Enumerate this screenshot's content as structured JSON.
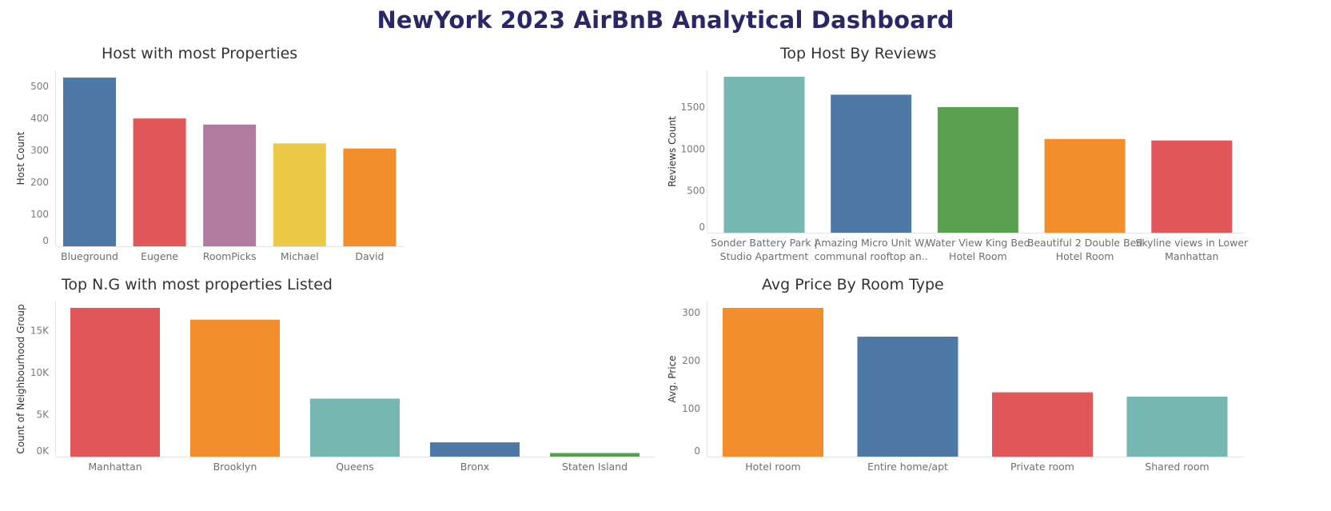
{
  "dashboard": {
    "title": "NewYork 2023 AirBnB Analytical Dashboard"
  },
  "colors": {
    "blue": "#4e79a7",
    "red": "#e15759",
    "purple": "#b07aa1",
    "yellow": "#edc948",
    "orange": "#f28e2b",
    "teal": "#76b7b2",
    "green": "#59a14f"
  },
  "chart_data": [
    {
      "id": "hosts",
      "type": "bar",
      "title": "Host with most Properties",
      "xlabel": "",
      "ylabel": "Host Count",
      "categories": [
        "Blueground",
        "Eugene",
        "RoomPicks",
        "Michael",
        "David"
      ],
      "values": [
        528,
        400,
        381,
        322,
        306
      ],
      "colors": [
        "#4e79a7",
        "#e15759",
        "#b07aa1",
        "#edc948",
        "#f28e2b"
      ],
      "yticks": [
        0,
        100,
        200,
        300,
        400,
        500
      ],
      "ytick_labels": [
        "0",
        "100",
        "200",
        "300",
        "400",
        "500"
      ],
      "ylim": [
        0,
        550
      ],
      "grid": false
    },
    {
      "id": "reviews",
      "type": "bar",
      "title": "Top Host By Reviews",
      "xlabel": "",
      "ylabel": "Reviews Count",
      "categories": [
        [
          "Sonder Battery Park |",
          "Studio Apartment"
        ],
        [
          "Amazing Micro Unit W/",
          "communal rooftop an.."
        ],
        [
          "Water View King Bed",
          "Hotel Room"
        ],
        [
          "Beautiful 2 Double Bed",
          "Hotel Room"
        ],
        [
          "Skyline views in Lower",
          "Manhattan"
        ]
      ],
      "values": [
        1865,
        1651,
        1502,
        1121,
        1103
      ],
      "colors": [
        "#76b7b2",
        "#4e79a7",
        "#59a14f",
        "#f28e2b",
        "#e15759"
      ],
      "yticks": [
        0,
        500,
        1000,
        1500
      ],
      "ytick_labels": [
        "0",
        "500",
        "1000",
        "1500"
      ],
      "ylim": [
        0,
        1900
      ],
      "grid": false
    },
    {
      "id": "neighbourhoods",
      "type": "bar",
      "title": "Top N.G with most properties Listed",
      "xlabel": "",
      "ylabel": "Count of Neighbourhood Group",
      "categories": [
        "Manhattan",
        "Brooklyn",
        "Queens",
        "Bronx",
        "Staten Island"
      ],
      "values": [
        17700,
        16300,
        6900,
        1700,
        430
      ],
      "colors": [
        "#e15759",
        "#f28e2b",
        "#76b7b2",
        "#4e79a7",
        "#59a14f"
      ],
      "yticks": [
        0,
        5000,
        10000,
        15000
      ],
      "ytick_labels": [
        "0K",
        "5K",
        "10K",
        "15K"
      ],
      "ylim": [
        0,
        18000
      ],
      "grid": false
    },
    {
      "id": "roomtype",
      "type": "bar",
      "title": "Avg Price By Room Type",
      "xlabel": "",
      "ylabel": "Avg. Price",
      "categories": [
        "Hotel room",
        "Entire home/apt",
        "Private room",
        "Shared room"
      ],
      "values": [
        310,
        250,
        134,
        125
      ],
      "colors": [
        "#f28e2b",
        "#4e79a7",
        "#e15759",
        "#76b7b2"
      ],
      "yticks": [
        0,
        100,
        200,
        300
      ],
      "ytick_labels": [
        "0",
        "100",
        "200",
        "300"
      ],
      "ylim": [
        0,
        315
      ],
      "grid": false
    }
  ]
}
